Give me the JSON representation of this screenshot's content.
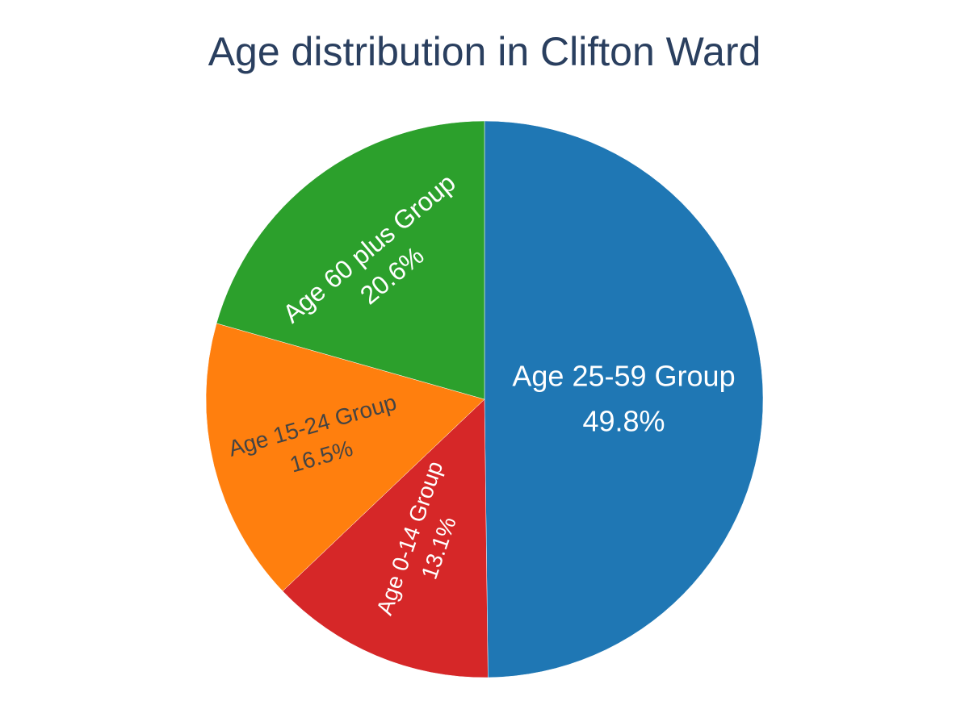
{
  "chart_data": {
    "type": "pie",
    "title": "Age distribution in Clifton Ward",
    "slices": [
      {
        "label": "Age 25-59 Group",
        "percent_text": "49.8%",
        "value": 49.8,
        "color": "#1f77b4",
        "text_color": "#ffffff"
      },
      {
        "label": "Age 0-14 Group",
        "percent_text": "13.1%",
        "value": 13.1,
        "color": "#d62728",
        "text_color": "#ffffff"
      },
      {
        "label": "Age 15-24 Group",
        "percent_text": "16.5%",
        "value": 16.5,
        "color": "#ff7f0e",
        "text_color": "#444444"
      },
      {
        "label": "Age 60 plus Group",
        "percent_text": "20.6%",
        "value": 20.6,
        "color": "#2ca02c",
        "text_color": "#ffffff"
      }
    ],
    "direction": "clockwise",
    "start": "top",
    "legend": "none"
  }
}
